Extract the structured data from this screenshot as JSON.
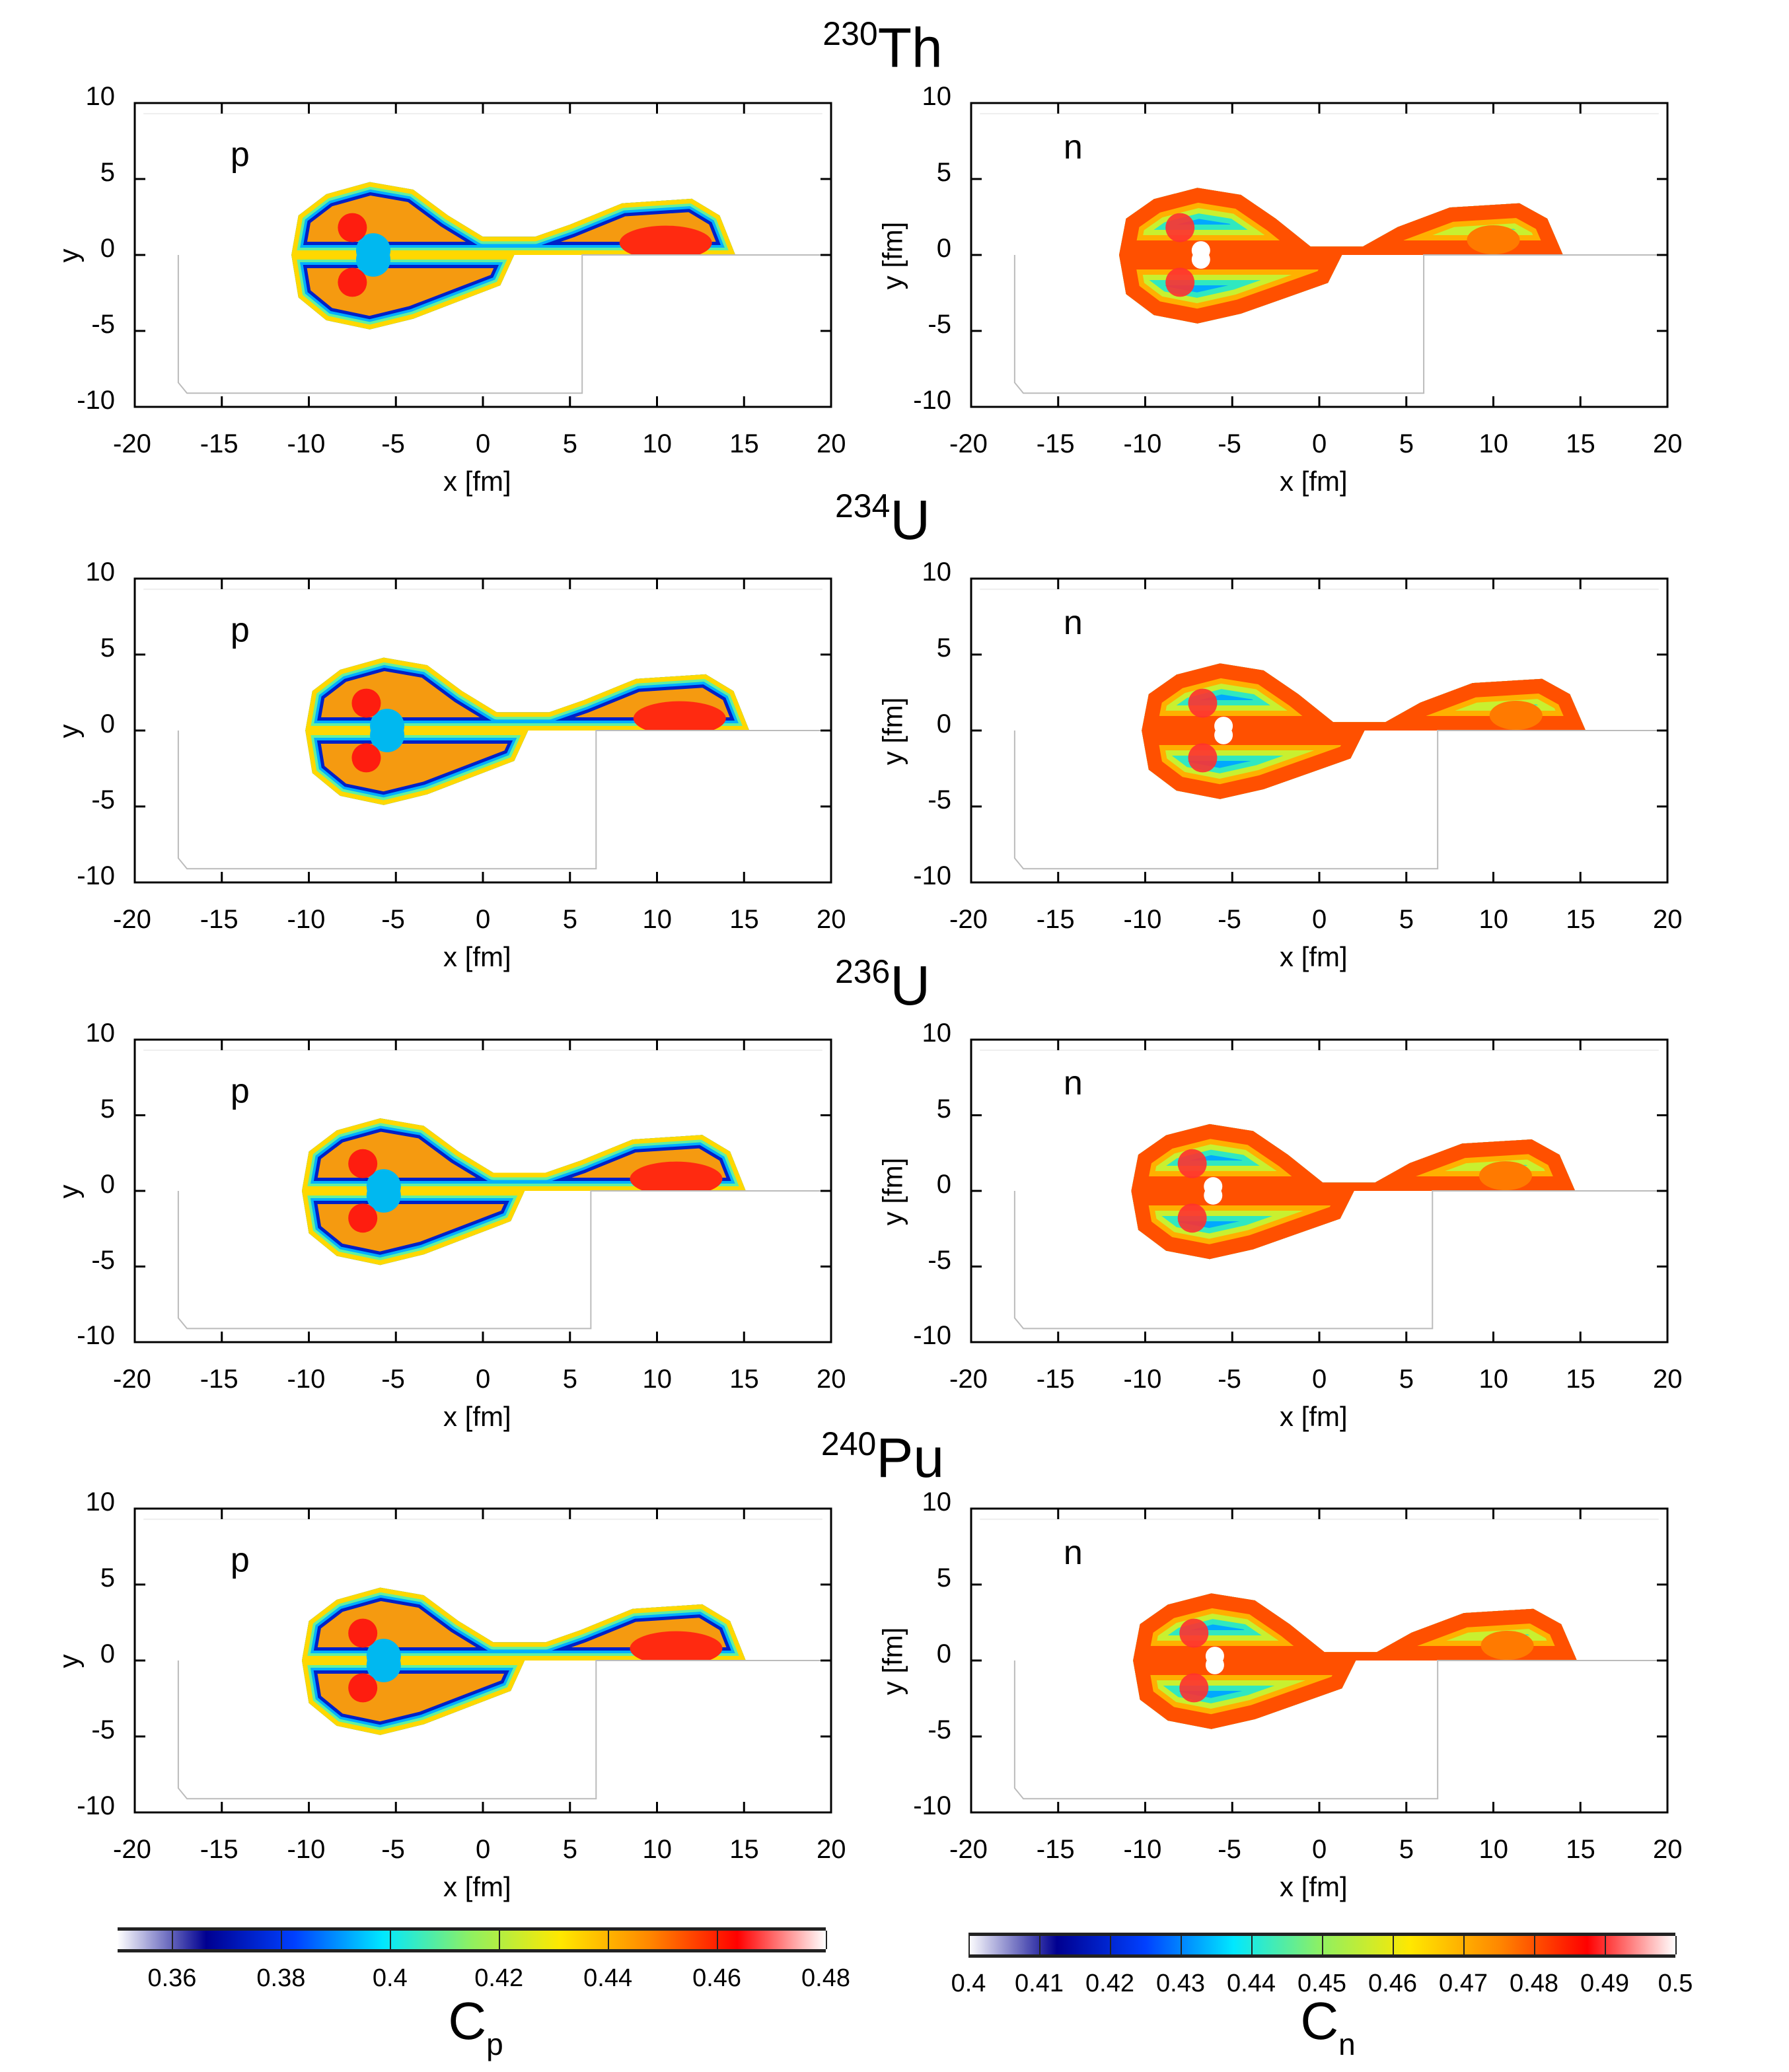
{
  "chart_data": {
    "type": "heatmap",
    "x_ticks": [
      "-20",
      "-15",
      "-10",
      "-5",
      "0",
      "5",
      "10",
      "15",
      "20"
    ],
    "y_ticks": [
      "10",
      "5",
      "0",
      "-5",
      "-10"
    ],
    "xlim": [
      -20,
      20
    ],
    "ylim": [
      -10,
      10
    ],
    "xlabel": "x [fm]",
    "rows": [
      {
        "mass": "230",
        "symbol": "Th",
        "panels": [
          {
            "label": "p",
            "ylabel": "y"
          },
          {
            "label": "n",
            "ylabel": "y [fm]"
          }
        ]
      },
      {
        "mass": "234",
        "symbol": "U",
        "panels": [
          {
            "label": "p",
            "ylabel": "y"
          },
          {
            "label": "n",
            "ylabel": "y [fm]"
          }
        ]
      },
      {
        "mass": "236",
        "symbol": "U",
        "panels": [
          {
            "label": "p",
            "ylabel": "y"
          },
          {
            "label": "n",
            "ylabel": "y [fm]"
          }
        ]
      },
      {
        "mass": "240",
        "symbol": "Pu",
        "panels": [
          {
            "label": "p",
            "ylabel": "y"
          },
          {
            "label": "n",
            "ylabel": "y [fm]"
          }
        ]
      }
    ],
    "colorbars": [
      {
        "label": "C",
        "subscript": "p",
        "range": [
          0.35,
          0.48
        ],
        "ticks": [
          "0.36",
          "0.38",
          "0.4",
          "0.42",
          "0.44",
          "0.46",
          "0.48"
        ]
      },
      {
        "label": "C",
        "subscript": "n",
        "range": [
          0.4,
          0.5
        ],
        "ticks": [
          "0.4",
          "0.41",
          "0.42",
          "0.43",
          "0.44",
          "0.45",
          "0.46",
          "0.47",
          "0.48",
          "0.49",
          "0.5"
        ]
      }
    ],
    "colormap": [
      "#ffffff",
      "#000090",
      "#0040ff",
      "#00e8ff",
      "#90f060",
      "#ffe800",
      "#ff8800",
      "#ff0000",
      "#ffffff"
    ]
  }
}
